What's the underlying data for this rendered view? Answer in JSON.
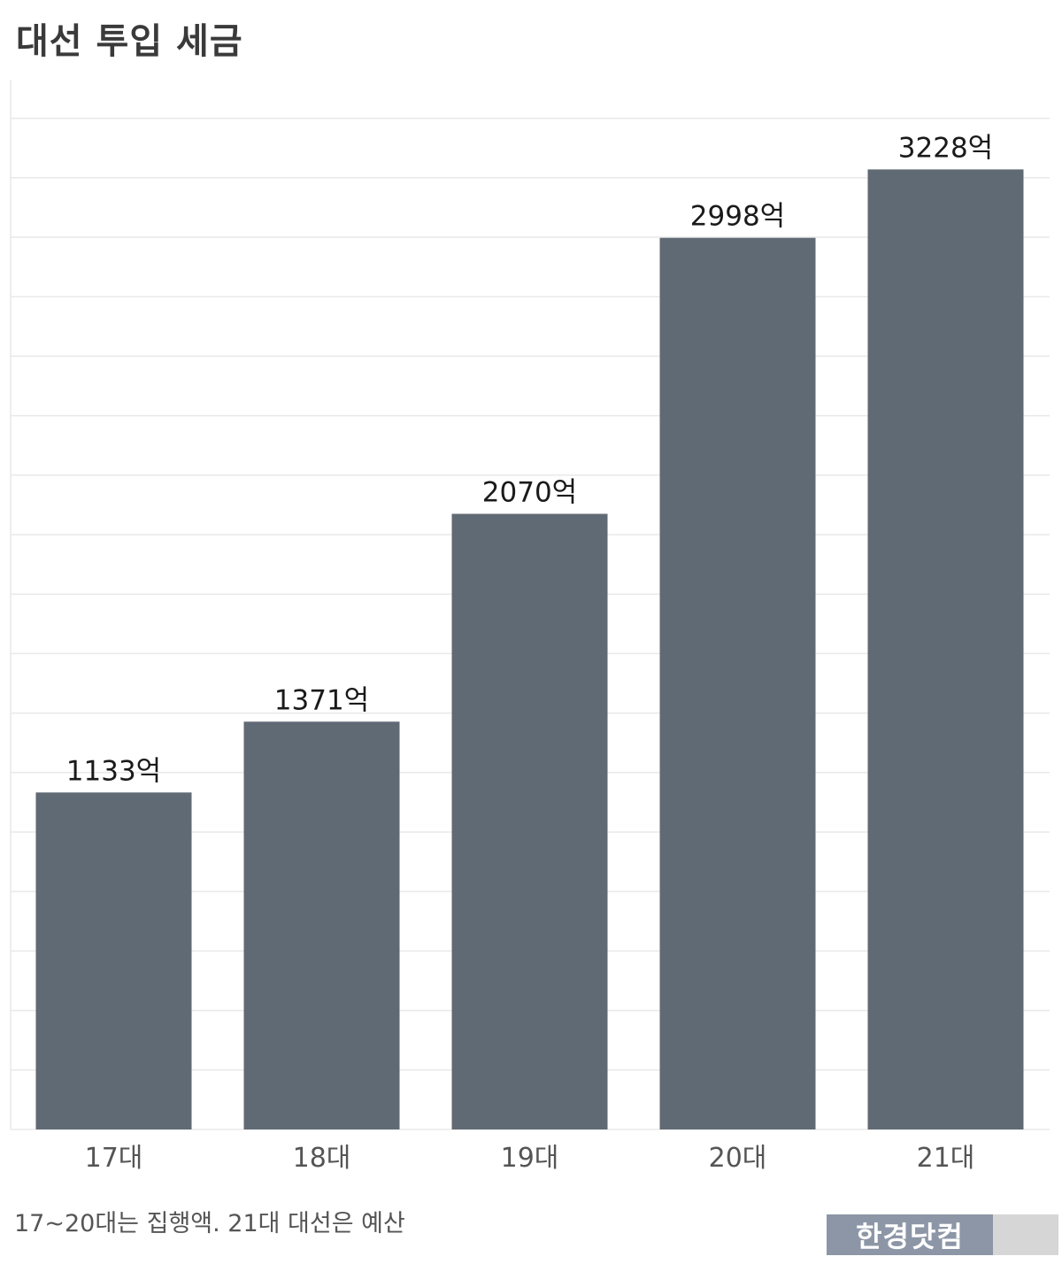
{
  "title": "대선 투입 세금",
  "footnote": "17~20대는 집행액. 21대 대선은 예산",
  "watermark": "한경닷컴",
  "colors": {
    "bar": "#606a75",
    "grid": "#e9e9e9",
    "label": "#1a1a1a",
    "axis_label": "#555555"
  },
  "chart_data": {
    "type": "bar",
    "title": "대선 투입 세금",
    "xlabel": "",
    "ylabel": "",
    "categories": [
      "17대",
      "18대",
      "19대",
      "20대",
      "21대"
    ],
    "values": [
      1133,
      1371,
      2070,
      2998,
      3228
    ],
    "value_labels": [
      "1133억",
      "1371억",
      "2070억",
      "2998억",
      "3228억"
    ],
    "unit": "억",
    "ylim": [
      0,
      3500
    ],
    "grid": true
  }
}
